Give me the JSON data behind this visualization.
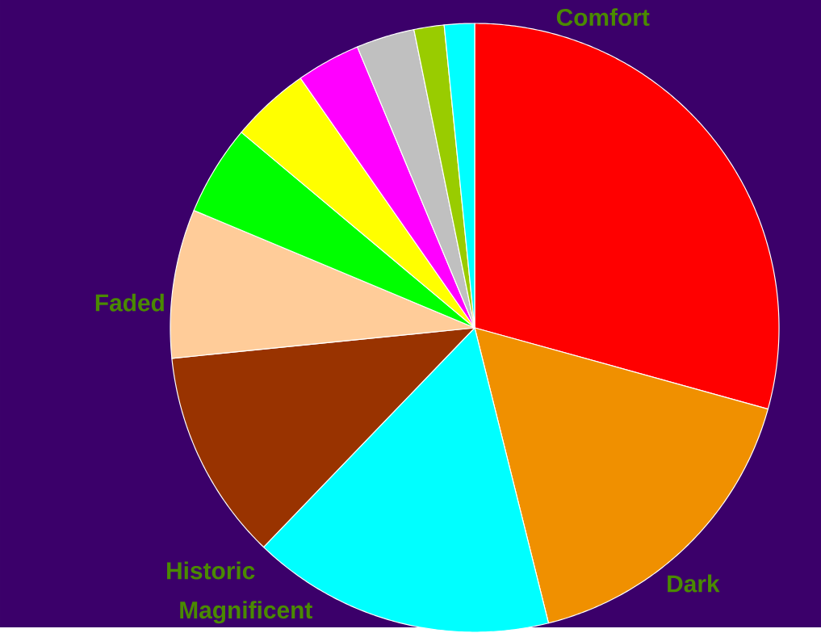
{
  "chart_data": {
    "type": "pie",
    "categories": [
      "Comfort",
      "Dark",
      "Magnificent",
      "Historic",
      "Faded",
      null,
      null,
      null,
      null,
      null,
      null
    ],
    "values": [
      29.3,
      16.8,
      16.1,
      11.2,
      7.9,
      4.8,
      4.2,
      3.4,
      3.1,
      1.6,
      1.6
    ],
    "colors": [
      "#ff0000",
      "#f09000",
      "#00ffff",
      "#993300",
      "#ffcc99",
      "#00ff00",
      "#ffff00",
      "#ff00ff",
      "#c0c0c0",
      "#99cc00",
      "#00ffff"
    ]
  }
}
